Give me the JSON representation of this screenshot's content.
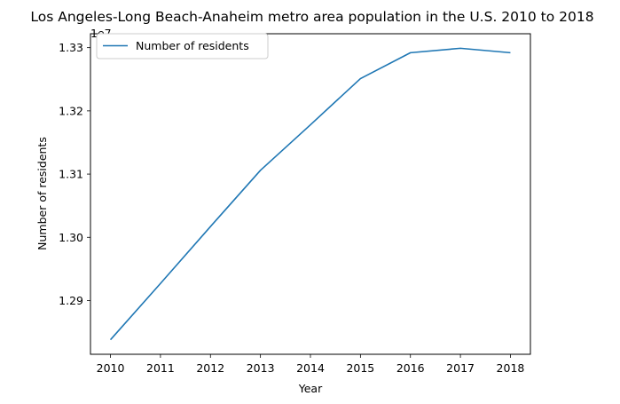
{
  "chart_data": {
    "type": "line",
    "title": "Los Angeles-Long Beach-Anaheim metro area population in the U.S. 2010 to 2018",
    "xlabel": "Year",
    "ylabel": "Number of residents",
    "y_offset_label": "1e7",
    "x": [
      2010,
      2011,
      2012,
      2013,
      2014,
      2015,
      2016,
      2017,
      2018
    ],
    "series": [
      {
        "name": "Number of residents",
        "color": "#1f77b4",
        "values": [
          12838000,
          12927000,
          13017000,
          13106000,
          13178000,
          13251000,
          13292000,
          13299000,
          13292000
        ]
      }
    ],
    "xlim": [
      2009.6,
      2018.4
    ],
    "ylim": [
      12815000,
      13322000
    ],
    "x_ticks": [
      2010,
      2011,
      2012,
      2013,
      2014,
      2015,
      2016,
      2017,
      2018
    ],
    "y_ticks": [
      12900000,
      13000000,
      13100000,
      13200000,
      13300000
    ],
    "y_tick_labels": [
      "1.29",
      "1.30",
      "1.31",
      "1.32",
      "1.33"
    ],
    "grid": false,
    "legend_position": "top-left"
  }
}
